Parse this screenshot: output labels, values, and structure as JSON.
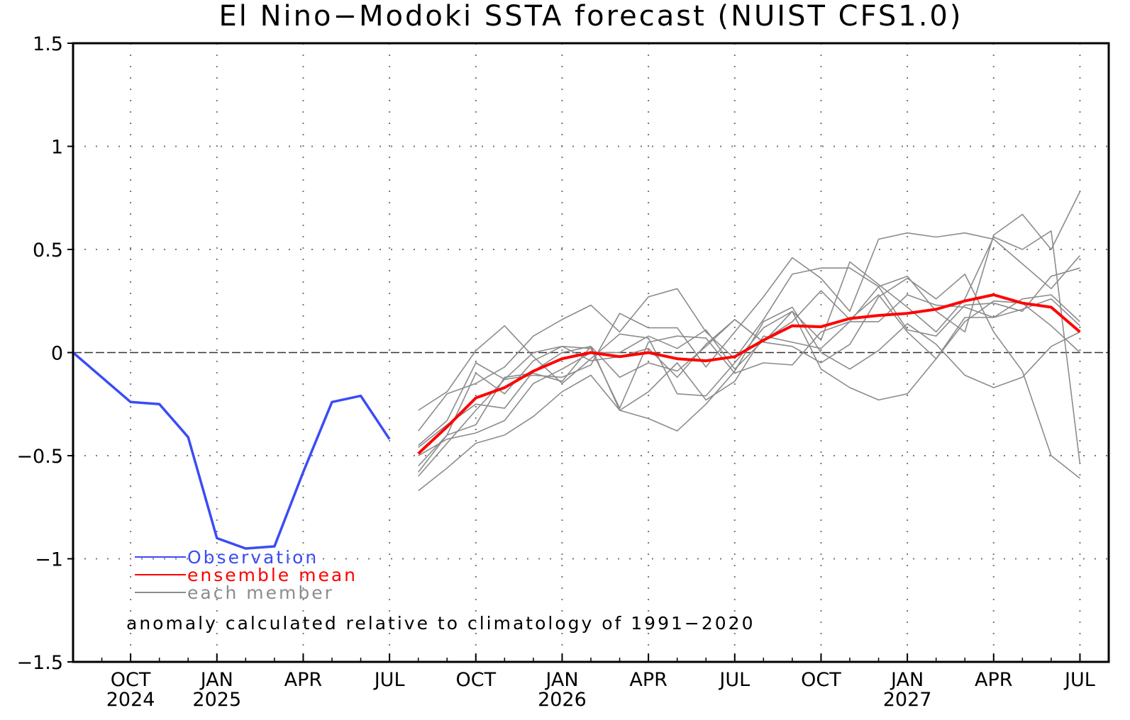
{
  "chart_data": {
    "type": "line",
    "title": "El Nino−Modoki SSTA forecast (NUIST CFS1.0)",
    "xlabel": "",
    "ylabel": "",
    "x_units": "months since AUG 2024",
    "xlim": [
      0,
      36
    ],
    "ylim": [
      -1.5,
      1.5
    ],
    "yticks": [
      1.5,
      1,
      0.5,
      0,
      -0.5,
      -1,
      -1.5
    ],
    "ytick_labels": [
      "1.5",
      "1",
      "0.5",
      "0",
      "−0.5",
      "−1",
      "−1.5"
    ],
    "xticks": [
      {
        "x": 2,
        "label": "OCT",
        "year": "2024"
      },
      {
        "x": 5,
        "label": "JAN",
        "year": "2025"
      },
      {
        "x": 8,
        "label": "APR",
        "year": ""
      },
      {
        "x": 11,
        "label": "JUL",
        "year": ""
      },
      {
        "x": 14,
        "label": "OCT",
        "year": ""
      },
      {
        "x": 17,
        "label": "JAN",
        "year": "2026"
      },
      {
        "x": 20,
        "label": "APR",
        "year": ""
      },
      {
        "x": 23,
        "label": "JUL",
        "year": ""
      },
      {
        "x": 26,
        "label": "OCT",
        "year": ""
      },
      {
        "x": 29,
        "label": "JAN",
        "year": "2027"
      },
      {
        "x": 32,
        "label": "APR",
        "year": ""
      },
      {
        "x": 35,
        "label": "JUL",
        "year": ""
      }
    ],
    "grid": true,
    "legend": {
      "placement": "bottom-left",
      "entries": [
        {
          "name": "Observation",
          "color": "#3a4cf5"
        },
        {
          "name": "ensemble mean",
          "color": "#ff0000"
        },
        {
          "name": "each member",
          "color": "#8c8c8c"
        }
      ]
    },
    "annotation": "anomaly calculated relative to climatology of 1991−2020",
    "observation": {
      "x_start": 0,
      "values": [
        0.0,
        -0.12,
        -0.24,
        -0.25,
        -0.41,
        -0.9,
        -0.95,
        -0.94,
        -0.58,
        -0.24,
        -0.21,
        -0.42
      ]
    },
    "ensemble_mean": {
      "x_start": 12,
      "values": [
        -0.49,
        -0.36,
        -0.22,
        -0.17,
        -0.09,
        -0.03,
        0.0,
        -0.02,
        0.0,
        -0.03,
        -0.04,
        -0.02,
        0.06,
        0.13,
        0.125,
        0.165,
        0.18,
        0.19,
        0.21,
        0.25,
        0.28,
        0.24,
        0.22,
        0.1
      ]
    },
    "members": {
      "x_start": 12,
      "series": [
        [
          -0.28,
          -0.19,
          0.01,
          0.13,
          -0.02,
          -0.15,
          -0.03,
          0.09,
          0.07,
          -0.2,
          -0.21,
          -0.05,
          0.12,
          0.2,
          0.06,
          0.44,
          0.33,
          0.22,
          0.1,
          0.26,
          0.56,
          0.5,
          0.59,
          -0.54
        ],
        [
          -0.38,
          -0.2,
          -0.15,
          -0.07,
          0.08,
          0.16,
          0.23,
          0.1,
          0.27,
          0.31,
          0.1,
          -0.03,
          0.16,
          0.38,
          0.41,
          0.41,
          0.32,
          0.37,
          0.2,
          0.1,
          0.57,
          0.67,
          0.5,
          0.78
        ],
        [
          -0.45,
          -0.33,
          -0.05,
          -0.13,
          -0.11,
          -0.12,
          -0.06,
          0.19,
          0.12,
          0.12,
          -0.07,
          0.1,
          0.27,
          0.46,
          0.36,
          0.2,
          0.55,
          0.58,
          0.56,
          0.58,
          0.55,
          0.43,
          0.31,
          0.47
        ],
        [
          -0.55,
          -0.4,
          -0.1,
          -0.2,
          -0.04,
          0.03,
          0.02,
          -0.27,
          0.05,
          0.08,
          0.07,
          -0.1,
          -0.05,
          -0.06,
          0.1,
          0.15,
          0.32,
          0.11,
          0.08,
          0.23,
          0.24,
          0.2,
          0.37,
          0.41
        ],
        [
          -0.46,
          -0.35,
          -0.25,
          -0.27,
          -0.09,
          0.0,
          0.03,
          -0.12,
          -0.05,
          -0.09,
          0.03,
          0.16,
          0.05,
          0.2,
          -0.08,
          -0.17,
          -0.23,
          -0.2,
          -0.03,
          0.17,
          0.17,
          0.21,
          0.26,
          0.13
        ],
        [
          -0.58,
          -0.4,
          -0.35,
          -0.12,
          -0.1,
          -0.14,
          0.03,
          -0.28,
          -0.19,
          -0.05,
          -0.23,
          -0.14,
          0.08,
          0.05,
          0.02,
          0.15,
          0.15,
          0.28,
          0.23,
          0.22,
          0.17,
          0.26,
          0.28,
          0.15
        ],
        [
          -0.6,
          -0.44,
          -0.28,
          -0.13,
          0.0,
          0.03,
          -0.04,
          -0.02,
          0.02,
          -0.12,
          0.04,
          0.16,
          0.05,
          0.03,
          -0.05,
          0.04,
          0.27,
          0.36,
          0.26,
          0.38,
          0.1,
          -0.09,
          -0.5,
          -0.61
        ],
        [
          -0.67,
          -0.56,
          -0.44,
          -0.4,
          -0.31,
          -0.19,
          -0.11,
          -0.28,
          -0.32,
          -0.38,
          -0.25,
          -0.09,
          0.15,
          0.22,
          0.0,
          -0.08,
          0.01,
          0.14,
          0.04,
          -0.11,
          -0.17,
          -0.12,
          0.03,
          0.1
        ],
        [
          -0.5,
          -0.42,
          -0.39,
          -0.33,
          -0.15,
          -0.08,
          0.0,
          0.0,
          0.08,
          0.02,
          0.11,
          -0.08,
          0.06,
          0.15,
          0.3,
          0.16,
          0.28,
          0.1,
          -0.03,
          0.15,
          0.25,
          0.24,
          0.13,
          0.0
        ]
      ]
    }
  }
}
